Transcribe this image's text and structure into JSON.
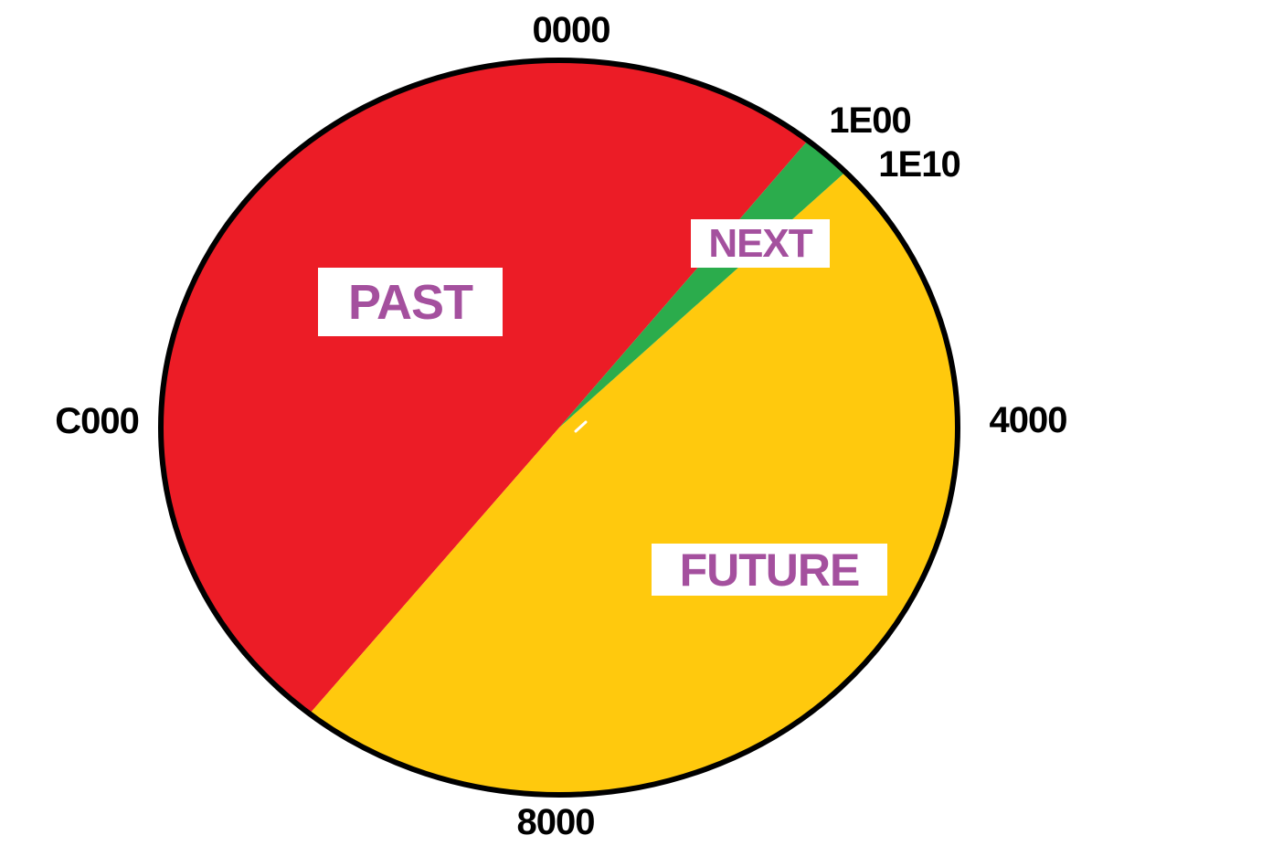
{
  "chart_data": {
    "type": "pie",
    "description_labels": {
      "past": "PAST",
      "next": "NEXT",
      "future": "FUTURE"
    },
    "slices": [
      {
        "label": "PAST",
        "color": "#EC1C26",
        "start_deg": 218.8,
        "end_deg": 398.6
      },
      {
        "label": "FUTURE",
        "color": "#FFC90D",
        "start_deg": 45.9,
        "end_deg": 218.8
      },
      {
        "label": "NEXT",
        "color": "#2BAC4C",
        "start_deg": 38.6,
        "end_deg": 45.9
      }
    ],
    "tick_labels": [
      {
        "text": "0000",
        "angle_deg": 0
      },
      {
        "text": "1E00",
        "angle_deg": 42.2
      },
      {
        "text": "1E10",
        "angle_deg": 42.3
      },
      {
        "text": "4000",
        "angle_deg": 90
      },
      {
        "text": "8000",
        "angle_deg": 180
      },
      {
        "text": "C000",
        "angle_deg": 270
      }
    ],
    "label_text_color": "#A4509E",
    "tick_text_color": "#000000",
    "outline_color": "#000000",
    "legend_position": "none",
    "grid": false
  }
}
